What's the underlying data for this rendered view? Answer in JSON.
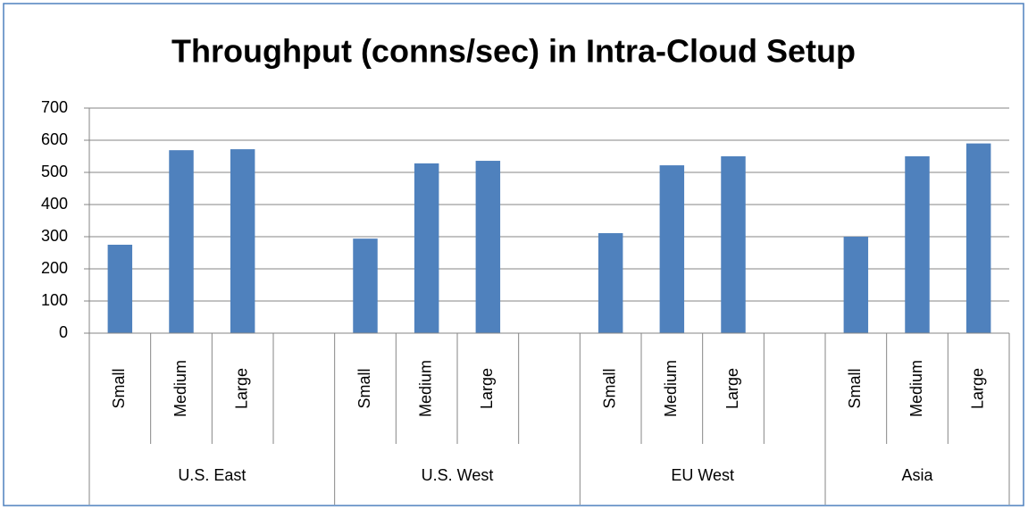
{
  "chart_data": {
    "type": "bar",
    "title": "Throughput (conns/sec) in Intra-Cloud Setup",
    "groups": [
      {
        "name": "U.S. East",
        "categories": [
          "Small",
          "Medium",
          "Large",
          null
        ],
        "values": [
          275,
          569,
          572,
          null
        ]
      },
      {
        "name": "U.S. West",
        "categories": [
          "Small",
          "Medium",
          "Large",
          null
        ],
        "values": [
          294,
          528,
          536,
          null
        ]
      },
      {
        "name": "EU West",
        "categories": [
          "Small",
          "Medium",
          "Large",
          null
        ],
        "values": [
          311,
          522,
          550,
          null
        ]
      },
      {
        "name": "Asia",
        "categories": [
          "Small",
          "Medium",
          "Large"
        ],
        "values": [
          300,
          550,
          590
        ]
      }
    ],
    "color": "#4f81bd",
    "ylim": [
      0,
      700
    ],
    "yticks": [
      0,
      100,
      200,
      300,
      400,
      500,
      600,
      700
    ],
    "grid": true
  }
}
